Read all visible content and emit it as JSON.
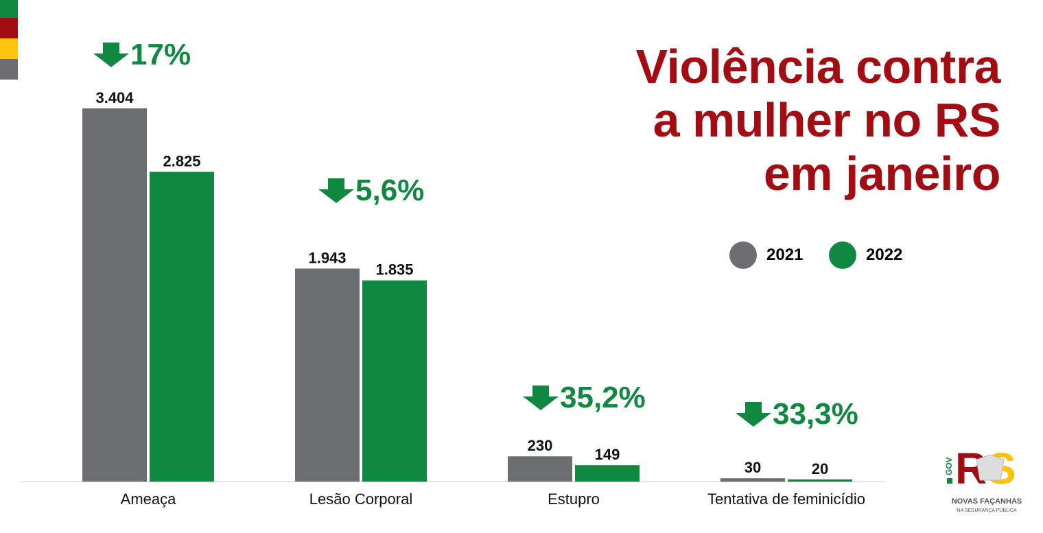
{
  "colors": {
    "y2021": "#6d6e71",
    "y2022": "#108842",
    "title": "#a10d12",
    "strip": [
      "#108842",
      "#a10d12",
      "#fdc30f",
      "#6d6e71"
    ]
  },
  "title_lines": [
    "Violência contra",
    "a mulher no RS",
    "em janeiro"
  ],
  "logo": {
    "gov": "GOV",
    "rs": "RS",
    "name": "NOVAS FAÇANHAS",
    "sub": "NA SEGURANÇA PÚBLICA"
  },
  "chart_data": {
    "type": "bar",
    "title": "Violência contra a mulher no RS em janeiro",
    "categories": [
      "Ameaça",
      "Lesão Corporal",
      "Estupro",
      "Tentativa de feminicídio"
    ],
    "series": [
      {
        "name": "2021",
        "values": [
          3404,
          1943,
          230,
          30
        ],
        "labels": [
          "3.404",
          "1.943",
          "230",
          "30"
        ]
      },
      {
        "name": "2022",
        "values": [
          2825,
          1835,
          149,
          20
        ],
        "labels": [
          "2.825",
          "1.835",
          "149",
          "20"
        ]
      }
    ],
    "changes": [
      "17%",
      "5,6%",
      "35,2%",
      "33,3%"
    ],
    "change_direction": "down",
    "legend": "right",
    "grid": false,
    "ylim": [
      0,
      3404
    ]
  }
}
